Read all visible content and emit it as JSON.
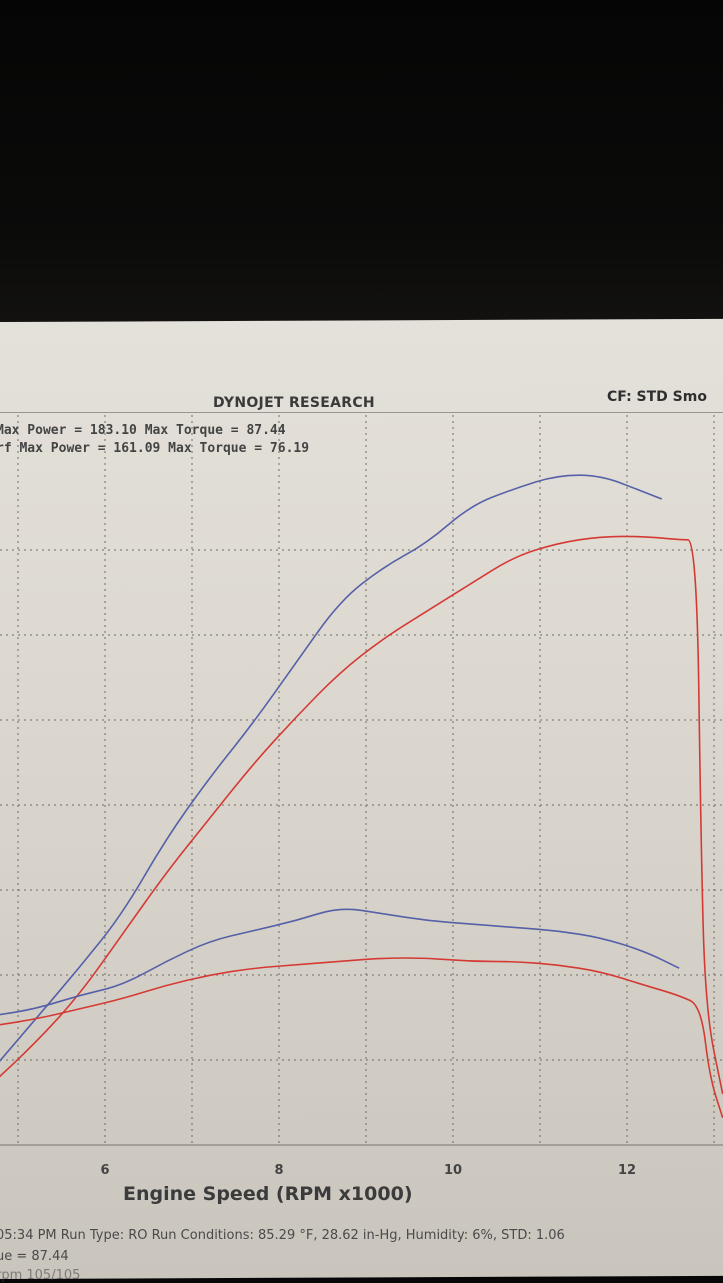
{
  "header": {
    "title": "DYNOJET RESEARCH",
    "cf": "CF: STD  Smo"
  },
  "summary": {
    "line1": "Max Power = 183.10    Max Torque = 87.44",
    "line2": "rf Max Power = 161.09    Max Torque = 76.19"
  },
  "footer": {
    "line1": "05:34 PM  Run Type: RO  Run Conditions: 85.29 °F, 28.62 in-Hg,  Humidity:  6%, STD: 1.06",
    "line2": "ue = 87.44",
    "line3": "rpm 105/105"
  },
  "chart_data": {
    "type": "line",
    "title": "",
    "xlabel": "Engine Speed (RPM x1000)",
    "ylabel": "",
    "xlim": [
      4.7,
      13.1
    ],
    "ylim": [
      0,
      200
    ],
    "x_ticks": [
      6,
      8,
      10,
      12
    ],
    "grid": true,
    "series": [
      {
        "color": "#5560a8",
        "kind": "power",
        "x": [
          4.7,
          5.2,
          5.7,
          6.2,
          6.7,
          7.2,
          7.7,
          8.2,
          8.7,
          9.2,
          9.7,
          10.2,
          10.7,
          11.2,
          11.7,
          12.2,
          12.4
        ],
        "y": [
          22,
          37,
          52,
          68,
          90,
          108,
          124,
          142,
          160,
          170,
          177,
          188,
          193,
          197,
          197,
          192,
          190
        ]
      },
      {
        "color": "#d43a33",
        "kind": "power",
        "x": [
          4.7,
          5.2,
          5.7,
          6.2,
          6.7,
          7.2,
          7.7,
          8.2,
          8.7,
          9.2,
          9.7,
          10.2,
          10.7,
          11.2,
          11.7,
          12.2,
          12.6,
          12.8,
          12.85,
          12.9,
          13.1
        ],
        "y": [
          18,
          30,
          44,
          62,
          80,
          96,
          112,
          126,
          139,
          149,
          157,
          165,
          173,
          177,
          179,
          179,
          178,
          178,
          90,
          40,
          15
        ]
      },
      {
        "color": "#5560a8",
        "kind": "torque",
        "x": [
          4.7,
          5.2,
          5.7,
          6.2,
          6.7,
          7.2,
          7.7,
          8.2,
          8.7,
          9.2,
          9.7,
          10.2,
          10.7,
          11.2,
          11.7,
          12.2,
          12.6
        ],
        "y": [
          38,
          40,
          44,
          47,
          54,
          60,
          63,
          66,
          70,
          68,
          66,
          65,
          64,
          63,
          61,
          57,
          52
        ]
      },
      {
        "color": "#d43a33",
        "kind": "torque",
        "x": [
          4.7,
          5.2,
          5.7,
          6.2,
          6.7,
          7.2,
          7.7,
          8.2,
          8.7,
          9.2,
          9.7,
          10.2,
          10.7,
          11.2,
          11.7,
          12.2,
          12.6,
          12.85,
          12.95,
          13.1
        ],
        "y": [
          35,
          37,
          40,
          43,
          47,
          50,
          52,
          53,
          54,
          55,
          55,
          54,
          54,
          53,
          51,
          47,
          44,
          41,
          20,
          8
        ]
      }
    ]
  }
}
